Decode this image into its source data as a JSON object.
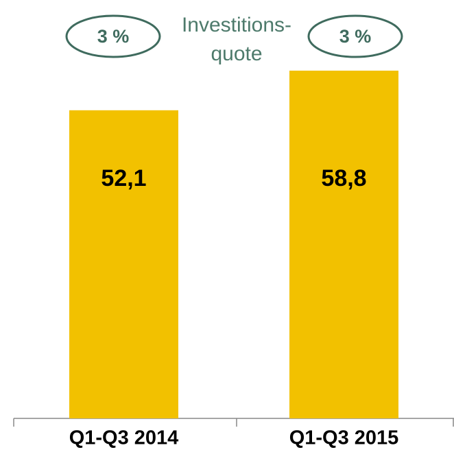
{
  "chart_data": {
    "type": "bar",
    "categories": [
      "Q1-Q3 2014",
      "Q1-Q3 2015"
    ],
    "values": [
      52.1,
      58.8
    ],
    "value_labels": [
      "52,1",
      "58,8"
    ],
    "color": "#f2c100",
    "rate_labels": [
      "3 %",
      "3 %"
    ],
    "rate_title": [
      "Investitions-",
      "quote"
    ]
  }
}
